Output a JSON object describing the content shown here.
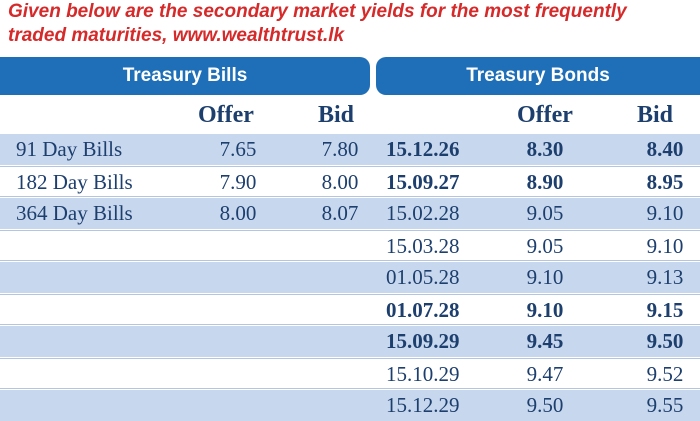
{
  "caption": {
    "line1": "Given below are the secondary market yields for the most frequently",
    "line2": "traded maturities, www.wealthtrust.lk"
  },
  "headers": {
    "bills": "Treasury Bills",
    "bonds": "Treasury Bonds",
    "offer": "Offer",
    "bid": "Bid"
  },
  "bills": [
    {
      "name": "91 Day Bills",
      "offer": "7.65",
      "bid": "7.80"
    },
    {
      "name": "182 Day Bills",
      "offer": "7.90",
      "bid": "8.00"
    },
    {
      "name": "364 Day Bills",
      "offer": "8.00",
      "bid": "8.07"
    }
  ],
  "bonds": [
    {
      "maturity": "15.12.26",
      "offer": "8.30",
      "bid": "8.40",
      "bold": true
    },
    {
      "maturity": "15.09.27",
      "offer": "8.90",
      "bid": "8.95",
      "bold": true
    },
    {
      "maturity": "15.02.28",
      "offer": "9.05",
      "bid": "9.10",
      "bold": false
    },
    {
      "maturity": "15.03.28",
      "offer": "9.05",
      "bid": "9.10",
      "bold": false
    },
    {
      "maturity": "01.05.28",
      "offer": "9.10",
      "bid": "9.13",
      "bold": false
    },
    {
      "maturity": "01.07.28",
      "offer": "9.10",
      "bid": "9.15",
      "bold": true
    },
    {
      "maturity": "15.09.29",
      "offer": "9.45",
      "bid": "9.50",
      "bold": true
    },
    {
      "maturity": "15.10.29",
      "offer": "9.47",
      "bid": "9.52",
      "bold": false
    },
    {
      "maturity": "15.12.29",
      "offer": "9.50",
      "bid": "9.55",
      "bold": false
    }
  ]
}
